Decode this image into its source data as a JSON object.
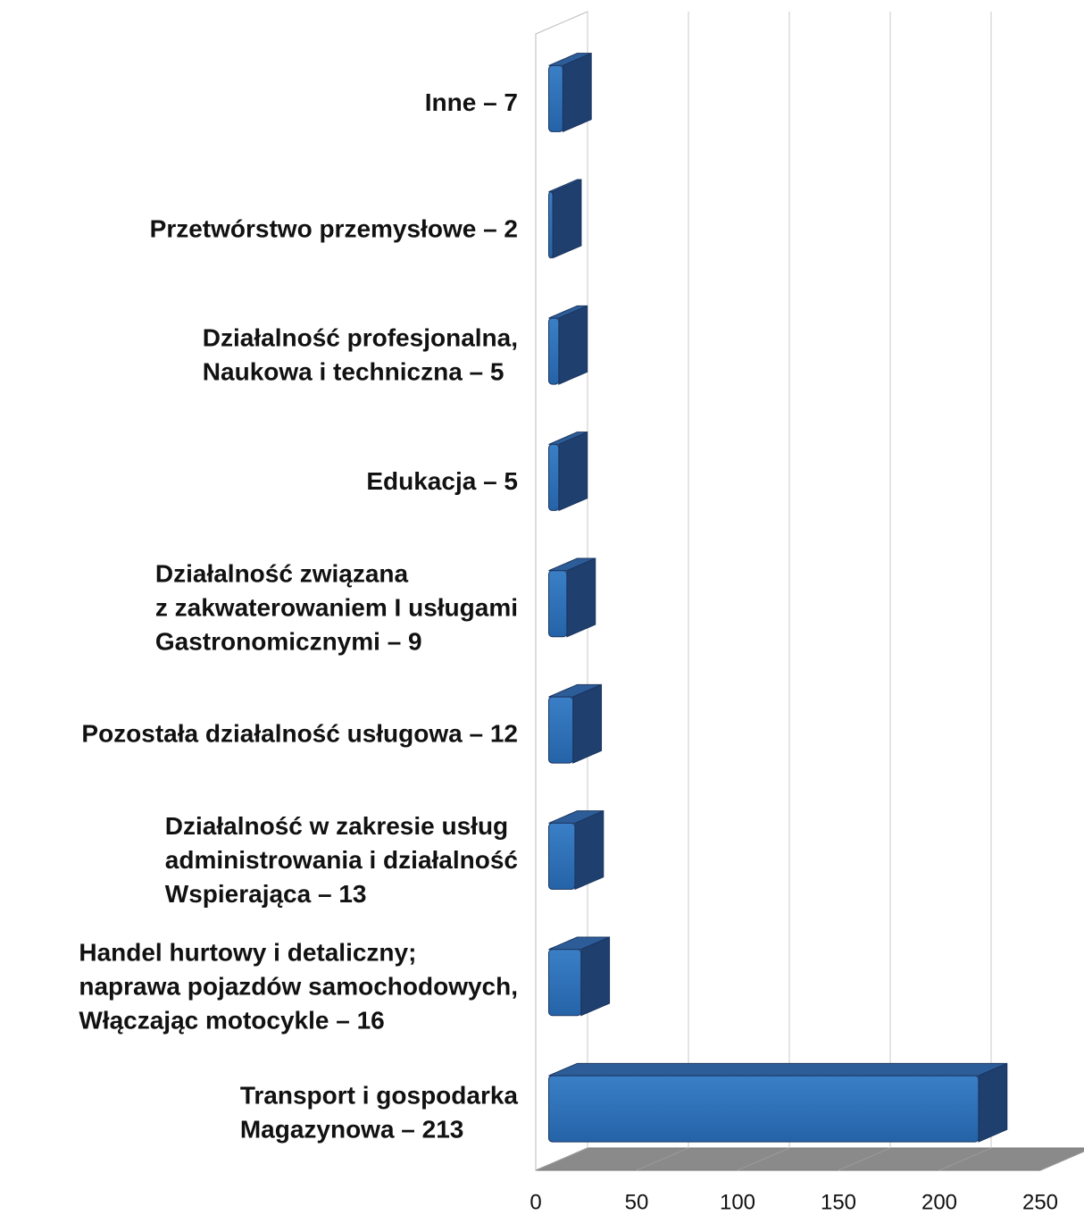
{
  "chart_data": {
    "type": "bar3d",
    "orientation": "horizontal",
    "categories": [
      [
        "Inne – 7"
      ],
      [
        "Przetwórstwo przemysłowe – 2"
      ],
      [
        "Działalność profesjonalna,",
        "Naukowa i techniczna – 5"
      ],
      [
        "Edukacja – 5"
      ],
      [
        "Działalność związana",
        "z zakwaterowaniem I usługami",
        "Gastronomicznymi – 9"
      ],
      [
        "Pozostała działalność usługowa – 12"
      ],
      [
        "Działalność w zakresie usług",
        "administrowania i działalność",
        "Wspierająca – 13"
      ],
      [
        "Handel hurtowy i detaliczny;",
        "naprawa pojazdów samochodowych,",
        "Włączając motocykle – 16"
      ],
      [
        "Transport i gospodarka",
        "Magazynowa – 213"
      ]
    ],
    "values": [
      7,
      2,
      5,
      5,
      9,
      12,
      13,
      16,
      213
    ],
    "color": "#2a6db5",
    "xlim": [
      0,
      250
    ],
    "xticks": [
      0,
      50,
      100,
      150,
      200,
      250
    ],
    "grid": true
  }
}
